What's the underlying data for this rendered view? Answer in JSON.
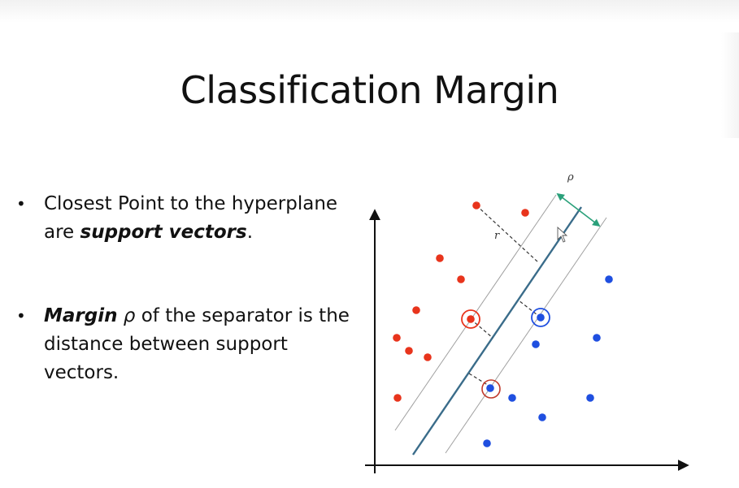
{
  "title": "Classification Margin",
  "bullets": [
    {
      "bullet_char": "•",
      "parts": [
        "Closest Point to the hyperplane are ",
        "support vectors",
        "."
      ]
    },
    {
      "bullet_char": "•",
      "parts": [
        "Margin",
        " ",
        "ρ",
        " of the separator is the distance between support vectors."
      ]
    }
  ],
  "diagram": {
    "margin_label": "ρ",
    "distance_label": "r",
    "colors": {
      "red_class": "#e8341c",
      "blue_class": "#1f4fe0",
      "hyperplane": "#3a6c8a",
      "margin_lines": "#9a9a9a",
      "margin_arrow": "#2aa07a",
      "axes": "#111111"
    },
    "red_points": 11,
    "blue_points": 9,
    "support_vectors": 3
  }
}
